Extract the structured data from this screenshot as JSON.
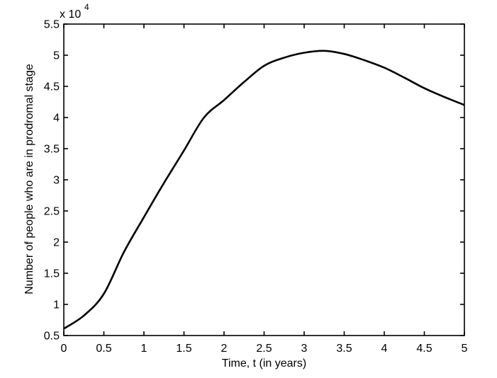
{
  "figure": {
    "background": "#ffffff",
    "axis_color": "#000000"
  },
  "chart_data": {
    "type": "line",
    "title": "",
    "xlabel": "Time, t (in years)",
    "ylabel": "Number of people who are in prodromal stage",
    "y_multiplier_base": "x 10",
    "y_multiplier_exponent": "4",
    "xlim": [
      0,
      5
    ],
    "ylim": [
      5000,
      55000
    ],
    "x_ticks": [
      0,
      0.5,
      1,
      1.5,
      2,
      2.5,
      3,
      3.5,
      4,
      4.5,
      5
    ],
    "x_tick_labels": [
      "0",
      "0.5",
      "1",
      "1.5",
      "2",
      "2.5",
      "3",
      "3.5",
      "4",
      "4.5",
      "5"
    ],
    "y_ticks": [
      5000,
      10000,
      15000,
      20000,
      25000,
      30000,
      35000,
      40000,
      45000,
      50000,
      55000
    ],
    "y_tick_labels": [
      "0.5",
      "1",
      "1.5",
      "2",
      "2.5",
      "3",
      "3.5",
      "4",
      "4.5",
      "5",
      "5.5"
    ],
    "grid": false,
    "legend": false,
    "line_color": "#000000",
    "line_width": 2.6,
    "series": [
      {
        "name": "people-in-prodromal-stage",
        "x": [
          0,
          0.25,
          0.5,
          0.75,
          1,
          1.25,
          1.5,
          1.75,
          2,
          2.25,
          2.5,
          2.75,
          3,
          3.25,
          3.5,
          3.75,
          4,
          4.25,
          4.5,
          4.75,
          5
        ],
        "y": [
          6100,
          8200,
          11700,
          18400,
          24000,
          29500,
          34700,
          40000,
          42800,
          45700,
          48300,
          49600,
          50400,
          50700,
          50200,
          49200,
          48000,
          46400,
          44700,
          43300,
          42000
        ]
      }
    ]
  }
}
